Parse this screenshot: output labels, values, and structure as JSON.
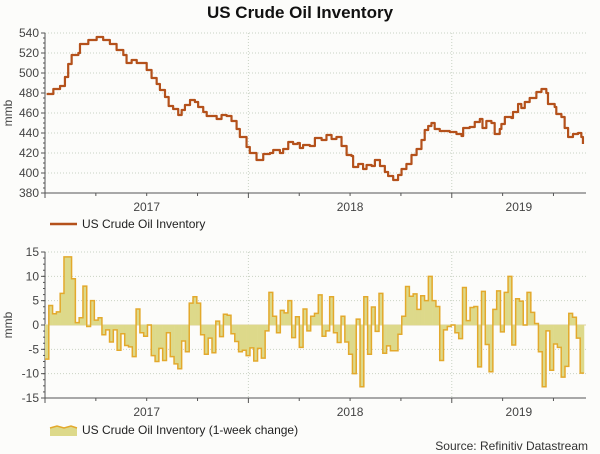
{
  "title": "US Crude Oil Inventory",
  "source": "Source: Refinitiv Datastream",
  "colors": {
    "inventory_line": "#b4511b",
    "change_fill": "#ddd98a",
    "change_line": "#e3a92c",
    "grid": "#c9d2c4",
    "axis": "#555555"
  },
  "chart_data": [
    {
      "type": "line",
      "title": "US Crude Oil Inventory",
      "ylabel": "mmb",
      "ylim": [
        380,
        540
      ],
      "yticks": [
        540,
        520,
        500,
        480,
        460,
        440,
        420,
        400,
        380
      ],
      "xlim": [
        2017.0,
        2019.66
      ],
      "xtick_labels": [
        "2017",
        "2018",
        "2019"
      ],
      "legend": "US Crude Oil Inventory",
      "legend_position": "bottom-left",
      "grid": true,
      "points": [
        [
          2017.008,
          479
        ],
        [
          2017.041,
          484
        ],
        [
          2017.074,
          487
        ],
        [
          2017.098,
          496
        ],
        [
          2017.114,
          509
        ],
        [
          2017.131,
          518
        ],
        [
          2017.164,
          520
        ],
        [
          2017.172,
          529
        ],
        [
          2017.205,
          529
        ],
        [
          2017.213,
          533
        ],
        [
          2017.254,
          536
        ],
        [
          2017.286,
          533
        ],
        [
          2017.319,
          529
        ],
        [
          2017.352,
          523
        ],
        [
          2017.385,
          518
        ],
        [
          2017.401,
          510
        ],
        [
          2017.426,
          513
        ],
        [
          2017.451,
          510
        ],
        [
          2017.483,
          510
        ],
        [
          2017.5,
          503
        ],
        [
          2017.524,
          495
        ],
        [
          2017.549,
          489
        ],
        [
          2017.565,
          483
        ],
        [
          2017.59,
          476
        ],
        [
          2017.608,
          467
        ],
        [
          2017.63,
          464
        ],
        [
          2017.655,
          458
        ],
        [
          2017.672,
          463
        ],
        [
          2017.688,
          468
        ],
        [
          2017.713,
          473
        ],
        [
          2017.737,
          471
        ],
        [
          2017.753,
          466
        ],
        [
          2017.778,
          461
        ],
        [
          2017.795,
          457
        ],
        [
          2017.827,
          457
        ],
        [
          2017.844,
          454
        ],
        [
          2017.868,
          458
        ],
        [
          2017.893,
          457
        ],
        [
          2017.917,
          452
        ],
        [
          2017.942,
          444
        ],
        [
          2017.958,
          436
        ],
        [
          2017.991,
          426
        ],
        [
          2018.007,
          420
        ],
        [
          2018.04,
          413
        ],
        [
          2018.065,
          413
        ],
        [
          2018.073,
          419
        ],
        [
          2018.106,
          420
        ],
        [
          2018.122,
          423
        ],
        [
          2018.155,
          420
        ],
        [
          2018.171,
          424
        ],
        [
          2018.196,
          431
        ],
        [
          2018.22,
          429
        ],
        [
          2018.242,
          430
        ],
        [
          2018.253,
          425
        ],
        [
          2018.269,
          428
        ],
        [
          2018.302,
          427
        ],
        [
          2018.327,
          435
        ],
        [
          2018.36,
          433
        ],
        [
          2018.384,
          438
        ],
        [
          2018.409,
          434
        ],
        [
          2018.433,
          436
        ],
        [
          2018.458,
          427
        ],
        [
          2018.483,
          418
        ],
        [
          2018.507,
          417
        ],
        [
          2018.515,
          406
        ],
        [
          2018.54,
          409
        ],
        [
          2018.564,
          404
        ],
        [
          2018.581,
          408
        ],
        [
          2018.606,
          407
        ],
        [
          2018.622,
          413
        ],
        [
          2018.647,
          407
        ],
        [
          2018.671,
          401
        ],
        [
          2018.687,
          397
        ],
        [
          2018.712,
          393
        ],
        [
          2018.736,
          398
        ],
        [
          2018.753,
          404
        ],
        [
          2018.777,
          409
        ],
        [
          2018.802,
          418
        ],
        [
          2018.827,
          424
        ],
        [
          2018.851,
          433
        ],
        [
          2018.867,
          443
        ],
        [
          2018.884,
          447
        ],
        [
          2018.9,
          450
        ],
        [
          2018.916,
          444
        ],
        [
          2018.941,
          442
        ],
        [
          2018.99,
          441
        ],
        [
          2019.023,
          439
        ],
        [
          2019.048,
          437
        ],
        [
          2019.056,
          445
        ],
        [
          2019.088,
          446
        ],
        [
          2019.113,
          451
        ],
        [
          2019.138,
          454
        ],
        [
          2019.151,
          445
        ],
        [
          2019.17,
          452
        ],
        [
          2019.195,
          450
        ],
        [
          2019.211,
          439
        ],
        [
          2019.236,
          444
        ],
        [
          2019.244,
          449
        ],
        [
          2019.261,
          456
        ],
        [
          2019.293,
          455
        ],
        [
          2019.301,
          461
        ],
        [
          2019.326,
          469
        ],
        [
          2019.342,
          465
        ],
        [
          2019.359,
          471
        ],
        [
          2019.383,
          475
        ],
        [
          2019.416,
          481
        ],
        [
          2019.441,
          484
        ],
        [
          2019.465,
          480
        ],
        [
          2019.473,
          469
        ],
        [
          2019.506,
          466
        ],
        [
          2019.514,
          459
        ],
        [
          2019.539,
          456
        ],
        [
          2019.555,
          445
        ],
        [
          2019.572,
          436
        ],
        [
          2019.596,
          439
        ],
        [
          2019.621,
          440
        ],
        [
          2019.637,
          436
        ],
        [
          2019.645,
          429
        ]
      ]
    },
    {
      "type": "area",
      "title": "US Crude Oil Inventory (1-week change)",
      "ylabel": "mmb",
      "ylim": [
        -15,
        15
      ],
      "yticks": [
        15,
        10,
        5,
        0,
        -5,
        -10,
        -15
      ],
      "xlim": [
        2017.0,
        2019.66
      ],
      "xtick_labels": [
        "2017",
        "2018",
        "2019"
      ],
      "legend": "US Crude Oil Inventory (1-week change)",
      "legend_position": "bottom-left",
      "grid": true,
      "x_start": 2017.0,
      "x_end": 2019.65,
      "values": [
        -7,
        4,
        2.3,
        2.7,
        6.5,
        14,
        14,
        9.5,
        0.5,
        1.5,
        8,
        -0.3,
        5,
        1,
        1.5,
        -2,
        -1,
        -3.5,
        -1,
        -5.2,
        -1.8,
        -4.2,
        -4.5,
        -6.5,
        3.3,
        -1.6,
        -2.3,
        0,
        -6.3,
        -7.5,
        -4.8,
        -7.3,
        -1.6,
        -6.5,
        -8,
        -9,
        -3.3,
        -5.5,
        4.5,
        5.8,
        4.5,
        -2,
        -6,
        -2.7,
        -5.7,
        0.8,
        -2.4,
        2.2,
        2,
        -1.8,
        -3.4,
        -5.5,
        -5.2,
        -6.3,
        -4.7,
        -7.4,
        -4.8,
        -6.8,
        -1.2,
        6.7,
        1.8,
        -1.6,
        3,
        2.5,
        5,
        -2.6,
        1.7,
        -4.6,
        3.3,
        -1.2,
        1.8,
        2.4,
        6.2,
        -2.3,
        -1.2,
        5.8,
        -1.6,
        -3.6,
        1.8,
        -3.5,
        -6,
        -10,
        1.2,
        -12.7,
        5.8,
        -6,
        3.7,
        -1.3,
        6.5,
        -5.8,
        -4.3,
        -5.3,
        -5.3,
        -1.9,
        1.8,
        7.9,
        5.9,
        6.4,
        3.2,
        6,
        5,
        10,
        5,
        3.8,
        -7.3,
        -1,
        -0.3,
        0,
        -1.6,
        -2.8,
        7.7,
        0.9,
        3.6,
        3.8,
        -8.6,
        6.9,
        -4,
        -9.6,
        3.2,
        7,
        -1.4,
        6.7,
        10,
        -4.1,
        5.4,
        4.9,
        0,
        6.7,
        2.6,
        0.3,
        -5.5,
        -12.7,
        -1.2,
        -9.3,
        -3.9,
        -4.6,
        -10.7,
        -8.5,
        2.4,
        1.6,
        -2.7,
        -9.9
      ]
    }
  ]
}
